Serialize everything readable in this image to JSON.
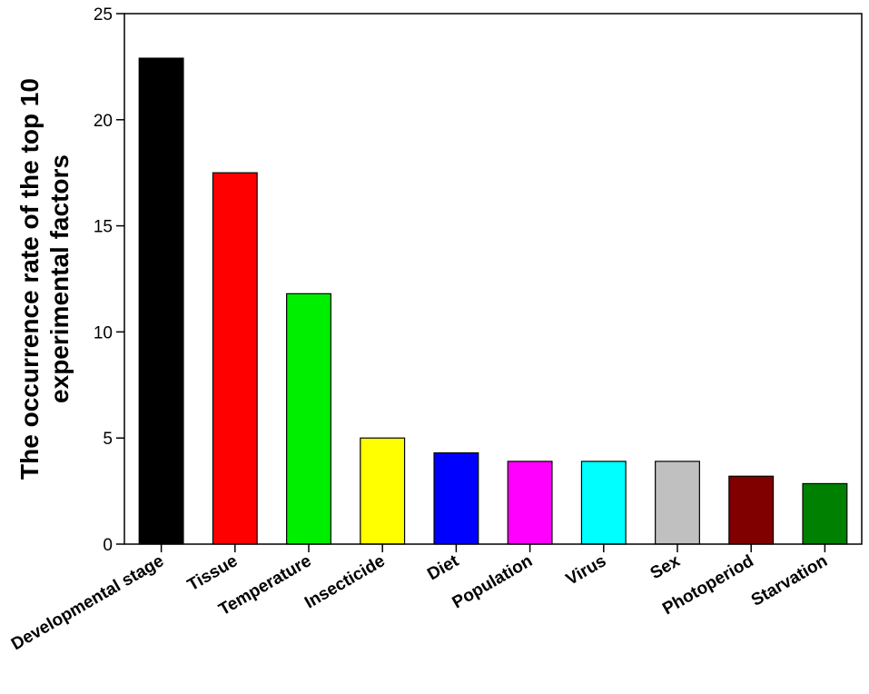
{
  "chart_data": {
    "type": "bar",
    "title": "",
    "xlabel": "",
    "ylabel_lines": [
      "The occurrence rate of the top 10",
      "experimental factors"
    ],
    "ylim": [
      0,
      25
    ],
    "yticks": [
      0,
      5,
      10,
      15,
      20,
      25
    ],
    "grid": false,
    "categories": [
      "Developmental stage",
      "Tissue",
      "Temperature",
      "Insecticide",
      "Diet",
      "Population",
      "Virus",
      "Sex",
      "Photoperiod",
      "Starvation"
    ],
    "values": [
      22.9,
      17.5,
      11.8,
      5.0,
      4.3,
      3.9,
      3.9,
      3.9,
      3.2,
      2.85
    ],
    "colors": [
      "#000000",
      "#ff0000",
      "#00ee00",
      "#ffff00",
      "#0000ff",
      "#ff00ff",
      "#00ffff",
      "#c0c0c0",
      "#800000",
      "#008000"
    ]
  }
}
